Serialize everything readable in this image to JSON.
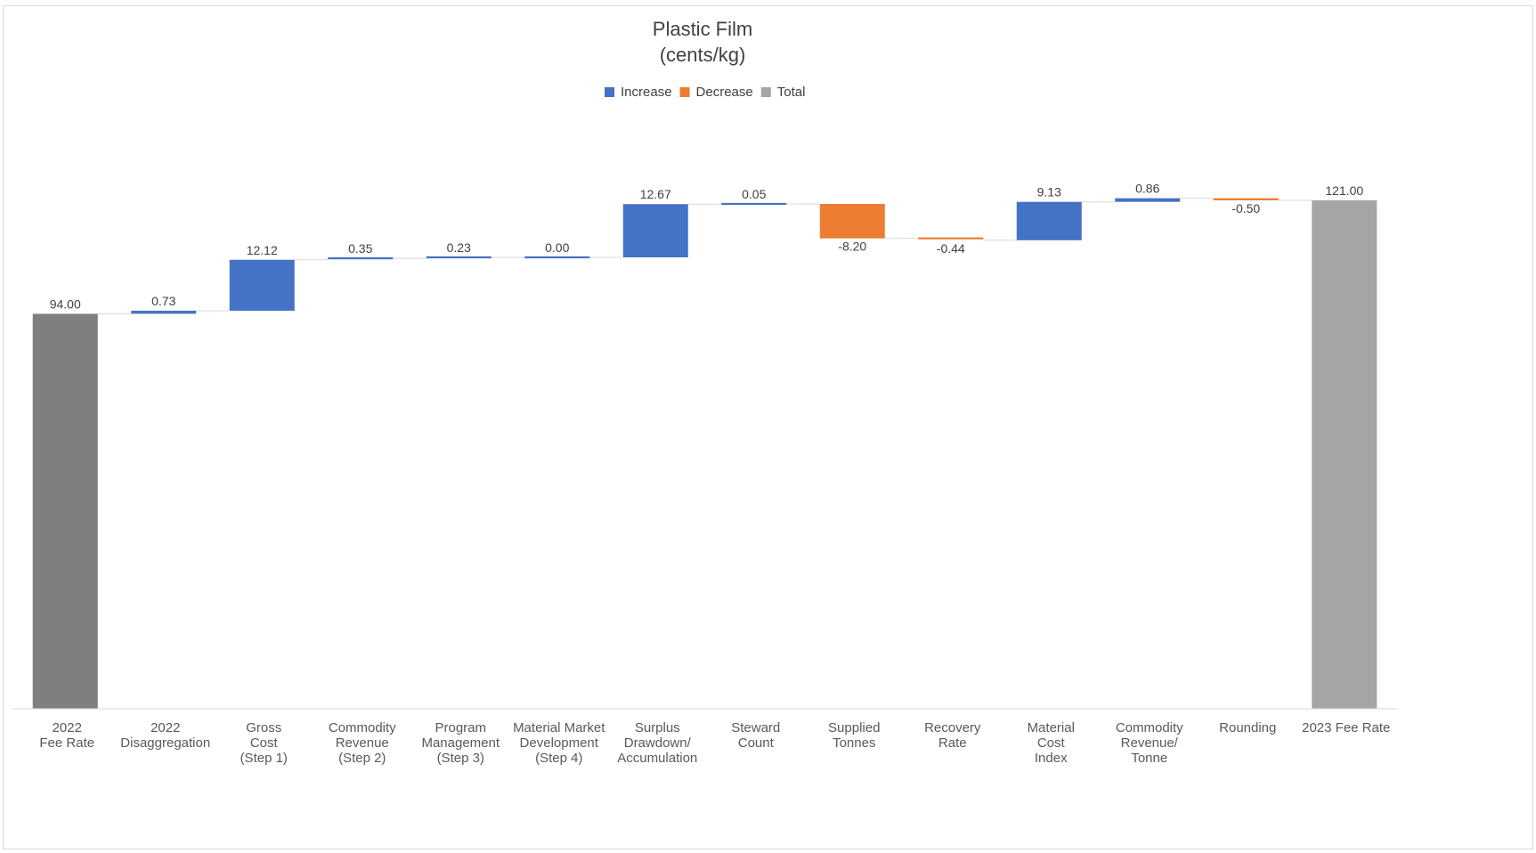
{
  "chart_data": {
    "type": "waterfall",
    "title": [
      "Plastic Film",
      "(cents/kg)"
    ],
    "legend": {
      "placement": "top-center",
      "items": [
        {
          "key": "increase",
          "label": "Increase",
          "color": "#4472C4"
        },
        {
          "key": "decrease",
          "label": "Decrease",
          "color": "#ED7D31"
        },
        {
          "key": "total",
          "label": "Total",
          "color": "#A5A5A5"
        }
      ]
    },
    "colors": {
      "increase": "#4472C4",
      "decrease": "#ED7D31",
      "total_start": "#7F7F7F",
      "total_end": "#A5A5A5",
      "connector": "#D9D9D9",
      "axis": "#D9D9D9"
    },
    "ylim": [
      0,
      121
    ],
    "grid": false,
    "steps": [
      {
        "category": [
          "2022",
          "Fee Rate"
        ],
        "value": 94.0,
        "label": "94.00",
        "kind": "total"
      },
      {
        "category": [
          "2022",
          "Disaggregation"
        ],
        "value": 0.73,
        "label": "0.73",
        "kind": "increase"
      },
      {
        "category": [
          "Gross",
          "Cost",
          "(Step 1)"
        ],
        "value": 12.12,
        "label": "12.12",
        "kind": "increase"
      },
      {
        "category": [
          "Commodity",
          "Revenue",
          "(Step 2)"
        ],
        "value": 0.35,
        "label": "0.35",
        "kind": "increase"
      },
      {
        "category": [
          "Program",
          "Management",
          "(Step 3)"
        ],
        "value": 0.23,
        "label": "0.23",
        "kind": "increase"
      },
      {
        "category": [
          "Material Market",
          "Development",
          "(Step 4)"
        ],
        "value": 0.0,
        "label": "0.00",
        "kind": "increase"
      },
      {
        "category": [
          "Surplus",
          "Drawdown/",
          "Accumulation"
        ],
        "value": 12.67,
        "label": "12.67",
        "kind": "increase"
      },
      {
        "category": [
          "Steward",
          "Count"
        ],
        "value": 0.05,
        "label": "0.05",
        "kind": "increase"
      },
      {
        "category": [
          "Supplied",
          "Tonnes"
        ],
        "value": -8.2,
        "label": "-8.20",
        "kind": "decrease"
      },
      {
        "category": [
          "Recovery",
          "Rate"
        ],
        "value": -0.44,
        "label": "-0.44",
        "kind": "decrease"
      },
      {
        "category": [
          "Material",
          "Cost",
          "Index"
        ],
        "value": 9.13,
        "label": "9.13",
        "kind": "increase"
      },
      {
        "category": [
          "Commodity",
          "Revenue/",
          "Tonne"
        ],
        "value": 0.86,
        "label": "0.86",
        "kind": "increase"
      },
      {
        "category": [
          "Rounding"
        ],
        "value": -0.5,
        "label": "-0.50",
        "kind": "decrease"
      },
      {
        "category": [
          "2023 Fee Rate"
        ],
        "value": 121.0,
        "label": "121.00",
        "kind": "total"
      }
    ]
  }
}
